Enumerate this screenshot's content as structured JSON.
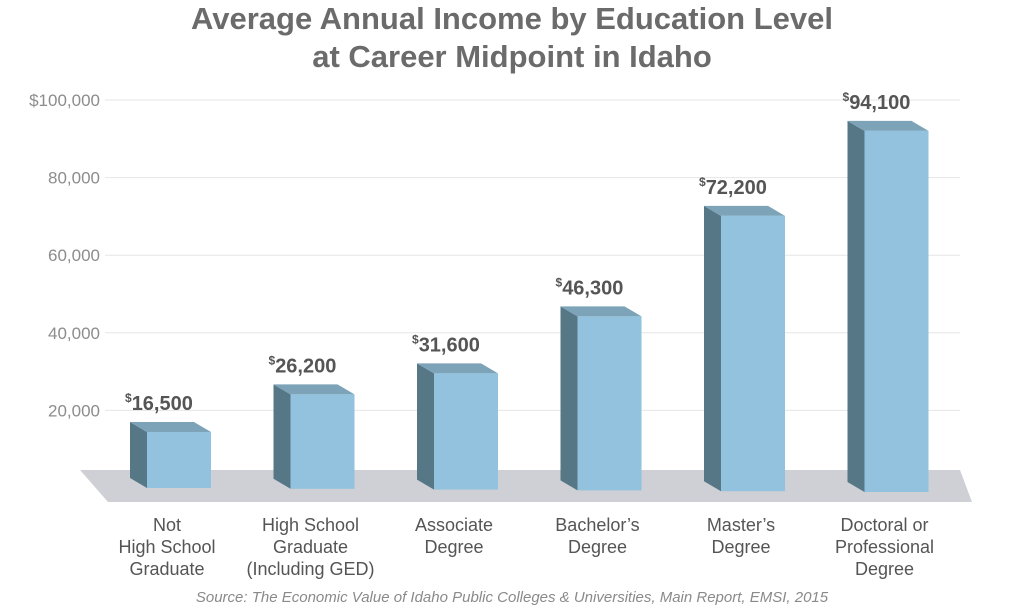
{
  "chart_data": {
    "type": "bar",
    "title_lines": [
      "Average Annual Income by Education Level",
      "at Career Midpoint in Idaho"
    ],
    "categories": [
      [
        "Not",
        "High School",
        "Graduate"
      ],
      [
        "High School",
        "Graduate",
        "(Including GED)"
      ],
      [
        "Associate",
        "Degree"
      ],
      [
        "Bachelor’s",
        "Degree"
      ],
      [
        "Master’s",
        "Degree"
      ],
      [
        "Doctoral or",
        "Professional",
        "Degree"
      ]
    ],
    "values": [
      16500,
      26200,
      31600,
      46300,
      72200,
      94100
    ],
    "value_labels": [
      "16,500",
      "26,200",
      "31,600",
      "46,300",
      "72,200",
      "94,100"
    ],
    "currency_symbol": "$",
    "y_ticks": [
      "20,000",
      "40,000",
      "60,000",
      "80,000",
      "$100,000"
    ],
    "y_tick_values": [
      20000,
      40000,
      60000,
      80000,
      100000
    ],
    "ylim": [
      0,
      100000
    ],
    "xlabel": "",
    "ylabel": "",
    "grid": true,
    "colors": {
      "bar_front": "#92c2dd",
      "bar_side": "#567786",
      "bar_top": "#7da3b8",
      "floor": "#cfcfd6",
      "grid": "#e6e6e6"
    },
    "source": "Source: The Economic Value of Idaho Public Colleges & Universities, Main Report, EMSI, 2015"
  }
}
